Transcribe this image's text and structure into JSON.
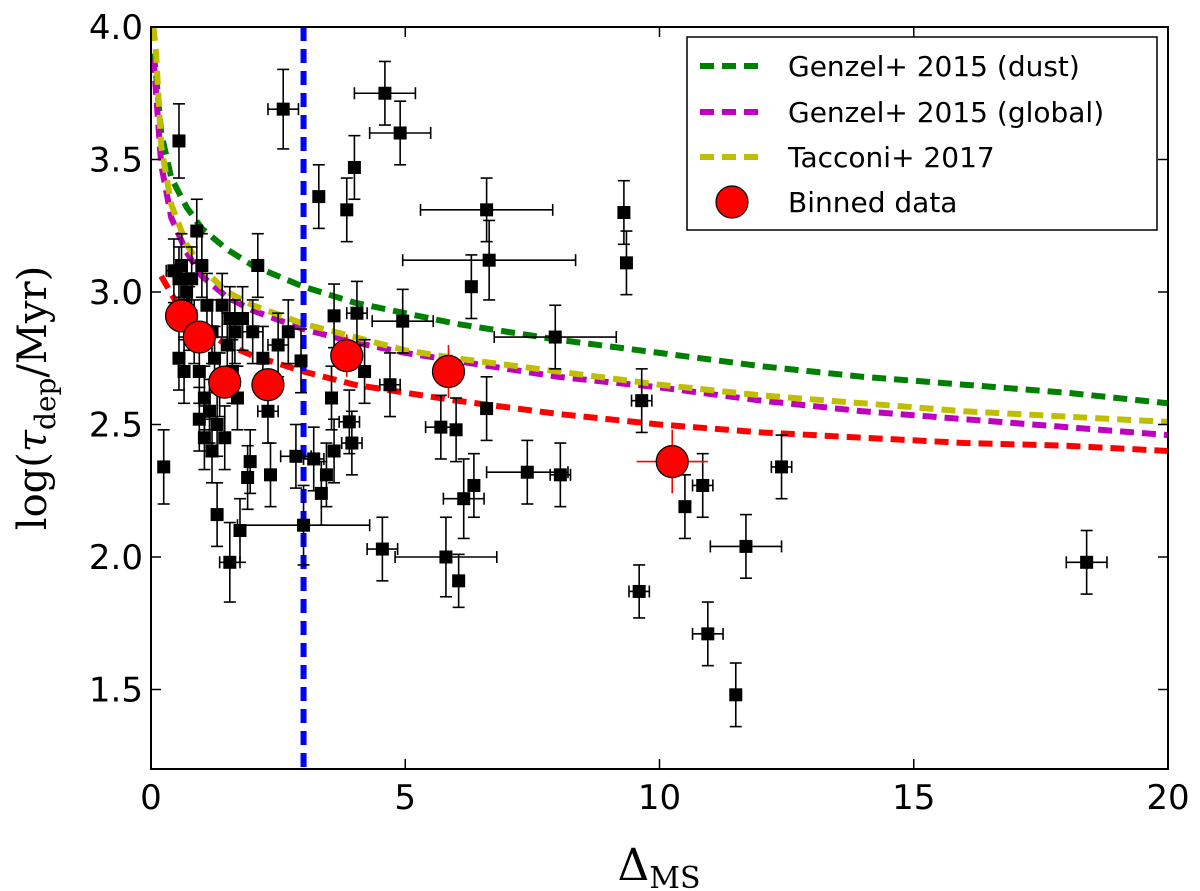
{
  "chart_data": {
    "type": "scatter",
    "title": "",
    "xlabel": {
      "main": "Δ",
      "sub": "MS"
    },
    "ylabel": {
      "prefix": "log(",
      "tau": "τ",
      "sub": "dep",
      "suffix": "/Myr)"
    },
    "xlim": [
      0,
      20
    ],
    "ylim": [
      1.2,
      4.0
    ],
    "xticks": [
      0,
      5,
      10,
      15,
      20
    ],
    "xtick_labels": [
      "0",
      "5",
      "10",
      "15",
      "20"
    ],
    "yticks": [
      1.5,
      2.0,
      2.5,
      3.0,
      3.5,
      4.0
    ],
    "ytick_labels": [
      "1.5",
      "2.0",
      "2.5",
      "3.0",
      "3.5",
      "4.0"
    ],
    "grid": false,
    "legend_position": "top-right",
    "vline": {
      "x": 3.0,
      "color": "#0000ff"
    },
    "curves": [
      {
        "name": "Genzel+ 2015 (dust)",
        "color": "#008000",
        "x": [
          0.05,
          0.1,
          0.2,
          0.4,
          0.7,
          1,
          1.5,
          2,
          3,
          4,
          5,
          6,
          8,
          10,
          12,
          14,
          16,
          18,
          20
        ],
        "y": [
          3.9,
          3.82,
          3.6,
          3.43,
          3.32,
          3.24,
          3.16,
          3.1,
          3.02,
          2.96,
          2.92,
          2.88,
          2.82,
          2.77,
          2.72,
          2.68,
          2.65,
          2.62,
          2.58
        ]
      },
      {
        "name": "Genzel+ 2015 (global)",
        "color": "#bf00bf",
        "x": [
          0.05,
          0.1,
          0.2,
          0.4,
          0.7,
          1,
          1.5,
          2,
          3,
          4,
          5,
          6,
          8,
          10,
          12,
          14,
          16,
          18,
          20
        ],
        "y": [
          3.88,
          3.75,
          3.48,
          3.28,
          3.15,
          3.06,
          2.98,
          2.93,
          2.86,
          2.81,
          2.77,
          2.74,
          2.68,
          2.64,
          2.59,
          2.55,
          2.52,
          2.49,
          2.46
        ]
      },
      {
        "name": "Tacconi+ 2017",
        "color": "#bfbf00",
        "x": [
          0.05,
          0.1,
          0.2,
          0.4,
          0.7,
          1,
          1.5,
          2,
          3,
          4,
          5,
          6,
          8,
          10,
          12,
          14,
          16,
          18,
          20
        ],
        "y": [
          4.0,
          3.9,
          3.55,
          3.33,
          3.18,
          3.09,
          3.0,
          2.95,
          2.88,
          2.83,
          2.78,
          2.75,
          2.7,
          2.65,
          2.61,
          2.58,
          2.55,
          2.53,
          2.51
        ]
      },
      {
        "name": "",
        "color": "#ff0000",
        "x": [
          0.2,
          0.5,
          1,
          1.5,
          2,
          3,
          4,
          5,
          6,
          8,
          10,
          12,
          14,
          16,
          18,
          20
        ],
        "y": [
          3.06,
          2.96,
          2.86,
          2.8,
          2.76,
          2.7,
          2.65,
          2.62,
          2.59,
          2.54,
          2.5,
          2.47,
          2.45,
          2.43,
          2.42,
          2.4
        ]
      }
    ],
    "points": [
      {
        "x": 0.45,
        "y": 3.08,
        "yerr": 0.12,
        "xerr": 0.15
      },
      {
        "x": 0.55,
        "y": 3.05,
        "yerr": 0.12,
        "xerr": 0.1
      },
      {
        "x": 0.6,
        "y": 3.1,
        "yerr": 0.12,
        "xerr": 0
      },
      {
        "x": 0.65,
        "y": 2.95,
        "yerr": 0.12,
        "xerr": 0.1
      },
      {
        "x": 0.7,
        "y": 3.0,
        "yerr": 0.12,
        "xerr": 0
      },
      {
        "x": 0.75,
        "y": 2.9,
        "yerr": 0.12,
        "xerr": 0.1
      },
      {
        "x": 0.8,
        "y": 3.05,
        "yerr": 0.12,
        "xerr": 0
      },
      {
        "x": 0.85,
        "y": 2.85,
        "yerr": 0.12,
        "xerr": 0.1
      },
      {
        "x": 0.9,
        "y": 3.23,
        "yerr": 0.12,
        "xerr": 0
      },
      {
        "x": 0.95,
        "y": 2.7,
        "yerr": 0.12,
        "xerr": 0
      },
      {
        "x": 1.0,
        "y": 3.1,
        "yerr": 0.12,
        "xerr": 0.1
      },
      {
        "x": 1.05,
        "y": 2.6,
        "yerr": 0.12,
        "xerr": 0
      },
      {
        "x": 1.1,
        "y": 2.95,
        "yerr": 0.12,
        "xerr": 0
      },
      {
        "x": 1.15,
        "y": 2.55,
        "yerr": 0.12,
        "xerr": 0.1
      },
      {
        "x": 1.2,
        "y": 2.85,
        "yerr": 0.12,
        "xerr": 0
      },
      {
        "x": 1.25,
        "y": 2.75,
        "yerr": 0.12,
        "xerr": 0
      },
      {
        "x": 1.3,
        "y": 2.5,
        "yerr": 0.12,
        "xerr": 0.1
      },
      {
        "x": 1.35,
        "y": 2.65,
        "yerr": 0.12,
        "xerr": 0
      },
      {
        "x": 1.4,
        "y": 2.95,
        "yerr": 0.12,
        "xerr": 0
      },
      {
        "x": 1.45,
        "y": 2.45,
        "yerr": 0.12,
        "xerr": 0.1
      },
      {
        "x": 1.5,
        "y": 2.8,
        "yerr": 0.12,
        "xerr": 0
      },
      {
        "x": 1.55,
        "y": 2.9,
        "yerr": 0.12,
        "xerr": 0
      },
      {
        "x": 1.6,
        "y": 2.7,
        "yerr": 0.12,
        "xerr": 0.1
      },
      {
        "x": 1.65,
        "y": 2.85,
        "yerr": 0.12,
        "xerr": 0
      },
      {
        "x": 1.7,
        "y": 2.6,
        "yerr": 0.12,
        "xerr": 0
      },
      {
        "x": 1.8,
        "y": 2.9,
        "yerr": 0.12,
        "xerr": 0.1
      },
      {
        "x": 0.55,
        "y": 2.75,
        "yerr": 0.12,
        "xerr": 0
      },
      {
        "x": 0.65,
        "y": 2.7,
        "yerr": 0.12,
        "xerr": 0
      },
      {
        "x": 0.95,
        "y": 2.52,
        "yerr": 0.12,
        "xerr": 0
      },
      {
        "x": 1.05,
        "y": 2.45,
        "yerr": 0.12,
        "xerr": 0
      },
      {
        "x": 1.2,
        "y": 2.4,
        "yerr": 0.12,
        "xerr": 0
      },
      {
        "x": 1.3,
        "y": 2.16,
        "yerr": 0.12,
        "xerr": 0.1
      },
      {
        "x": 1.55,
        "y": 1.98,
        "yerr": 0.15,
        "xerr": 0.2
      },
      {
        "x": 1.75,
        "y": 2.1,
        "yerr": 0.12,
        "xerr": 0
      },
      {
        "x": 1.9,
        "y": 2.3,
        "yerr": 0.12,
        "xerr": 0.1
      },
      {
        "x": 1.95,
        "y": 2.36,
        "yerr": 0.12,
        "xerr": 0
      },
      {
        "x": 2.0,
        "y": 2.85,
        "yerr": 0.12,
        "xerr": 0.2
      },
      {
        "x": 2.1,
        "y": 3.1,
        "yerr": 0.12,
        "xerr": 0
      },
      {
        "x": 2.2,
        "y": 2.75,
        "yerr": 0.12,
        "xerr": 0.1
      },
      {
        "x": 2.3,
        "y": 2.55,
        "yerr": 0.12,
        "xerr": 0.2
      },
      {
        "x": 2.35,
        "y": 2.31,
        "yerr": 0.12,
        "xerr": 0.1
      },
      {
        "x": 2.5,
        "y": 2.8,
        "yerr": 0.12,
        "xerr": 0.2
      },
      {
        "x": 2.6,
        "y": 3.69,
        "yerr": 0.15,
        "xerr": 0.3
      },
      {
        "x": 2.7,
        "y": 2.85,
        "yerr": 0.12,
        "xerr": 0.1
      },
      {
        "x": 2.85,
        "y": 2.38,
        "yerr": 0.12,
        "xerr": 0.3
      },
      {
        "x": 2.95,
        "y": 2.74,
        "yerr": 0.12,
        "xerr": 0.1
      },
      {
        "x": 3.0,
        "y": 2.12,
        "yerr": 0.15,
        "xerr": 1.3
      },
      {
        "x": 3.2,
        "y": 2.37,
        "yerr": 0.12,
        "xerr": 0.2
      },
      {
        "x": 3.3,
        "y": 3.36,
        "yerr": 0.12,
        "xerr": 0.1
      },
      {
        "x": 3.35,
        "y": 2.24,
        "yerr": 0.12,
        "xerr": 0
      },
      {
        "x": 3.45,
        "y": 2.31,
        "yerr": 0.12,
        "xerr": 0.1
      },
      {
        "x": 3.55,
        "y": 2.6,
        "yerr": 0.12,
        "xerr": 0
      },
      {
        "x": 3.6,
        "y": 2.4,
        "yerr": 0.12,
        "xerr": 0.1
      },
      {
        "x": 3.6,
        "y": 2.91,
        "yerr": 0.12,
        "xerr": 0.1
      },
      {
        "x": 3.85,
        "y": 3.31,
        "yerr": 0.12,
        "xerr": 0
      },
      {
        "x": 3.9,
        "y": 2.51,
        "yerr": 0.12,
        "xerr": 0.2
      },
      {
        "x": 3.95,
        "y": 2.43,
        "yerr": 0.12,
        "xerr": 0.2
      },
      {
        "x": 4.0,
        "y": 3.47,
        "yerr": 0.12,
        "xerr": 0
      },
      {
        "x": 4.05,
        "y": 2.92,
        "yerr": 0.12,
        "xerr": 0.2
      },
      {
        "x": 4.2,
        "y": 2.7,
        "yerr": 0.12,
        "xerr": 0.1
      },
      {
        "x": 4.55,
        "y": 2.03,
        "yerr": 0.12,
        "xerr": 0.3
      },
      {
        "x": 4.6,
        "y": 3.75,
        "yerr": 0.12,
        "xerr": 0.6
      },
      {
        "x": 4.7,
        "y": 2.65,
        "yerr": 0.12,
        "xerr": 0.2
      },
      {
        "x": 4.9,
        "y": 3.6,
        "yerr": 0.12,
        "xerr": 0.6
      },
      {
        "x": 4.95,
        "y": 2.89,
        "yerr": 0.12,
        "xerr": 0.6
      },
      {
        "x": 5.7,
        "y": 2.49,
        "yerr": 0.12,
        "xerr": 0.3
      },
      {
        "x": 5.8,
        "y": 2.0,
        "yerr": 0.15,
        "xerr": 1.0
      },
      {
        "x": 6.0,
        "y": 2.48,
        "yerr": 0.12,
        "xerr": 0
      },
      {
        "x": 6.05,
        "y": 1.91,
        "yerr": 0.1,
        "xerr": 0
      },
      {
        "x": 6.15,
        "y": 2.22,
        "yerr": 0.15,
        "xerr": 0.4
      },
      {
        "x": 6.3,
        "y": 3.02,
        "yerr": 0.12,
        "xerr": 0
      },
      {
        "x": 6.35,
        "y": 2.27,
        "yerr": 0.12,
        "xerr": 0
      },
      {
        "x": 6.6,
        "y": 3.31,
        "yerr": 0.12,
        "xerr": 1.3
      },
      {
        "x": 6.6,
        "y": 2.56,
        "yerr": 0.12,
        "xerr": 0
      },
      {
        "x": 6.65,
        "y": 3.12,
        "yerr": 0.15,
        "xerr": 1.7
      },
      {
        "x": 7.4,
        "y": 2.32,
        "yerr": 0.12,
        "xerr": 0.8
      },
      {
        "x": 7.95,
        "y": 2.83,
        "yerr": 0.12,
        "xerr": 1.2
      },
      {
        "x": 8.05,
        "y": 2.31,
        "yerr": 0.12,
        "xerr": 0.2
      },
      {
        "x": 9.3,
        "y": 3.3,
        "yerr": 0.12,
        "xerr": 0
      },
      {
        "x": 9.35,
        "y": 3.11,
        "yerr": 0.12,
        "xerr": 0
      },
      {
        "x": 9.6,
        "y": 1.87,
        "yerr": 0.1,
        "xerr": 0.2
      },
      {
        "x": 9.65,
        "y": 2.59,
        "yerr": 0.12,
        "xerr": 0.2
      },
      {
        "x": 10.5,
        "y": 2.19,
        "yerr": 0.12,
        "xerr": 0
      },
      {
        "x": 10.85,
        "y": 2.27,
        "yerr": 0.12,
        "xerr": 0.2
      },
      {
        "x": 10.95,
        "y": 1.71,
        "yerr": 0.12,
        "xerr": 0.3
      },
      {
        "x": 11.5,
        "y": 1.48,
        "yerr": 0.12,
        "xerr": 0
      },
      {
        "x": 11.7,
        "y": 2.04,
        "yerr": 0.12,
        "xerr": 0.7
      },
      {
        "x": 12.4,
        "y": 2.34,
        "yerr": 0.12,
        "xerr": 0.2
      },
      {
        "x": 18.4,
        "y": 1.98,
        "yerr": 0.12,
        "xerr": 0.4
      },
      {
        "x": 0.25,
        "y": 2.34,
        "yerr": 0.14,
        "xerr": 0
      },
      {
        "x": 0.55,
        "y": 3.57,
        "yerr": 0.14,
        "xerr": 0
      }
    ],
    "binned": [
      {
        "x": 0.6,
        "y": 2.91,
        "yerr": 0.05
      },
      {
        "x": 0.95,
        "y": 2.83,
        "yerr": 0.05
      },
      {
        "x": 1.45,
        "y": 2.66,
        "yerr": 0.05
      },
      {
        "x": 2.3,
        "y": 2.65,
        "yerr": 0.05
      },
      {
        "x": 3.85,
        "y": 2.76,
        "yerr": 0.08
      },
      {
        "x": 5.85,
        "y": 2.7,
        "yerr": 0.1
      },
      {
        "x": 10.25,
        "y": 2.36,
        "yerr": 0.12,
        "xerr": 0.7
      }
    ],
    "legend": [
      {
        "label": "Genzel+ 2015 (dust)",
        "kind": "line",
        "color": "#008000"
      },
      {
        "label": "Genzel+ 2015 (global)",
        "kind": "line",
        "color": "#bf00bf"
      },
      {
        "label": "Tacconi+ 2017",
        "kind": "line",
        "color": "#bfbf00"
      },
      {
        "label": "Binned data",
        "kind": "marker",
        "color": "#ff0000"
      }
    ]
  }
}
